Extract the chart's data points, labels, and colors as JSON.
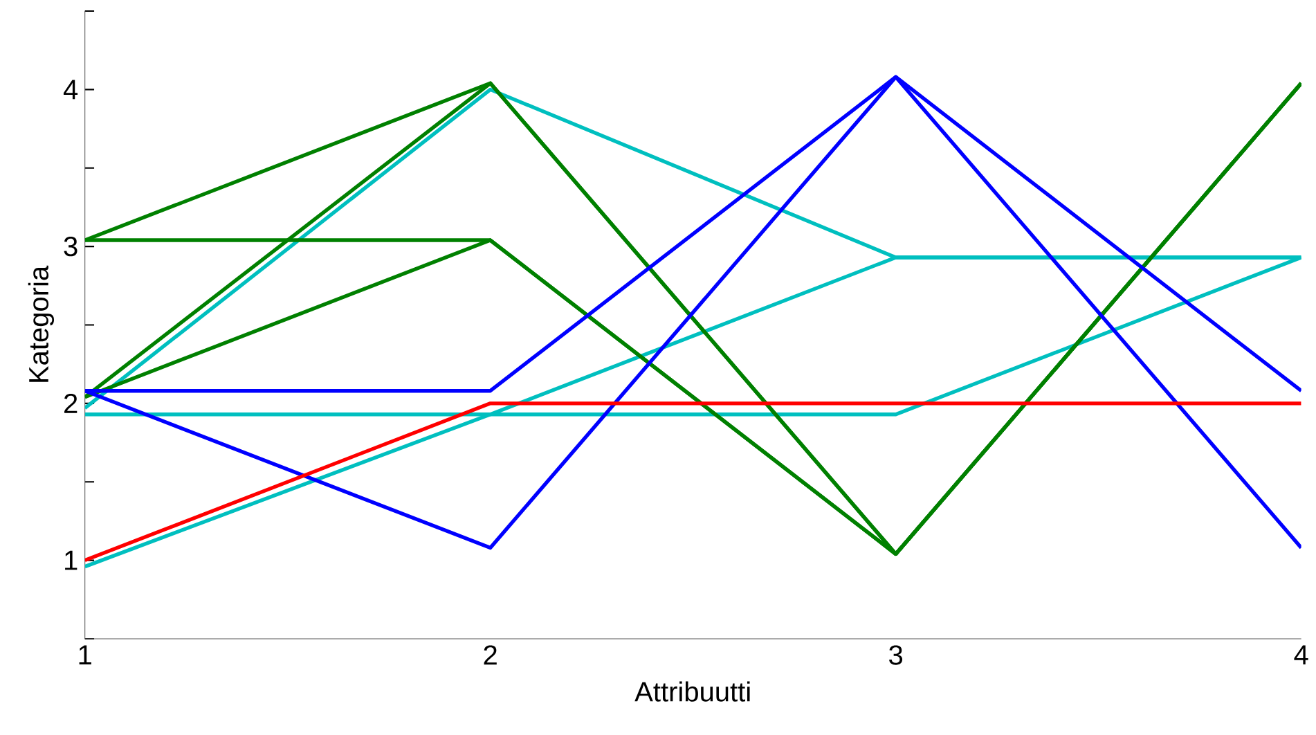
{
  "chart_data": {
    "type": "line",
    "xlabel": "Attribuutti",
    "ylabel": "Kategoria",
    "x": [
      1,
      2,
      3,
      4
    ],
    "series": [
      {
        "color": "#00bfbf",
        "values": [
          1.97,
          4.0,
          2.93,
          2.93
        ]
      },
      {
        "color": "#00bfbf",
        "values": [
          0.96,
          1.93,
          2.93,
          2.93
        ]
      },
      {
        "color": "#00bfbf",
        "values": [
          1.93,
          1.93,
          1.93,
          2.93
        ]
      },
      {
        "color": "#008000",
        "values": [
          3.04,
          4.04,
          1.04,
          4.04
        ]
      },
      {
        "color": "#008000",
        "values": [
          2.04,
          3.04,
          1.04,
          4.04
        ]
      },
      {
        "color": "#008000",
        "values": [
          3.04,
          3.04,
          1.04,
          4.04
        ]
      },
      {
        "color": "#008000",
        "values": [
          2.04,
          4.04,
          1.04,
          4.04
        ]
      },
      {
        "color": "#0000ff",
        "values": [
          2.08,
          2.08,
          4.08,
          1.08
        ]
      },
      {
        "color": "#0000ff",
        "values": [
          2.08,
          1.08,
          4.08,
          2.08
        ]
      },
      {
        "color": "#ff0000",
        "values": [
          1.0,
          2.0,
          2.0,
          2.0
        ]
      }
    ],
    "xlim": [
      1,
      4
    ],
    "xticks": [
      1,
      2,
      3,
      4
    ],
    "ylim": [
      0.5,
      4.5
    ],
    "yticks": [
      {
        "value": 0.5,
        "label": null
      },
      1,
      {
        "value": 1.5,
        "label": null
      },
      2,
      {
        "value": 2.5,
        "label": null
      },
      3,
      {
        "value": 3.5,
        "label": null
      },
      4,
      {
        "value": 4.5,
        "label": null
      }
    ],
    "grid": false,
    "marker": "none",
    "line_style": "solid"
  }
}
